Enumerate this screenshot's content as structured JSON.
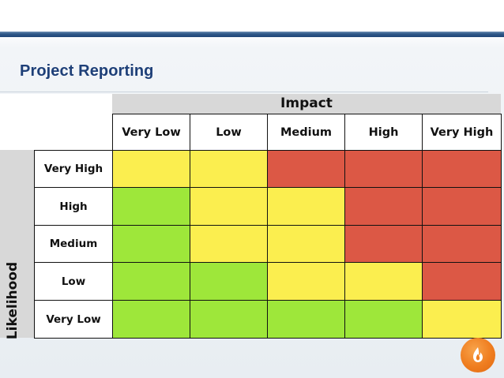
{
  "slide": {
    "title": "Project Reporting"
  },
  "matrix": {
    "impact_label": "Impact",
    "likelihood_label": "Likelihood",
    "impact_levels": [
      "Very Low",
      "Low",
      "Medium",
      "High",
      "Very High"
    ],
    "likelihood_levels": [
      "Very High",
      "High",
      "Medium",
      "Low",
      "Very Low"
    ],
    "colors": {
      "green": "#9ee73a",
      "yellow": "#fbee4f",
      "red": "#dc5845"
    },
    "cells": [
      [
        "yellow",
        "yellow",
        "red",
        "red",
        "red"
      ],
      [
        "green",
        "yellow",
        "yellow",
        "red",
        "red"
      ],
      [
        "green",
        "yellow",
        "yellow",
        "red",
        "red"
      ],
      [
        "green",
        "green",
        "yellow",
        "yellow",
        "red"
      ],
      [
        "green",
        "green",
        "green",
        "green",
        "yellow"
      ]
    ]
  },
  "logo": {
    "icon": "flame-logo-icon",
    "color": "#ef7d1f"
  }
}
